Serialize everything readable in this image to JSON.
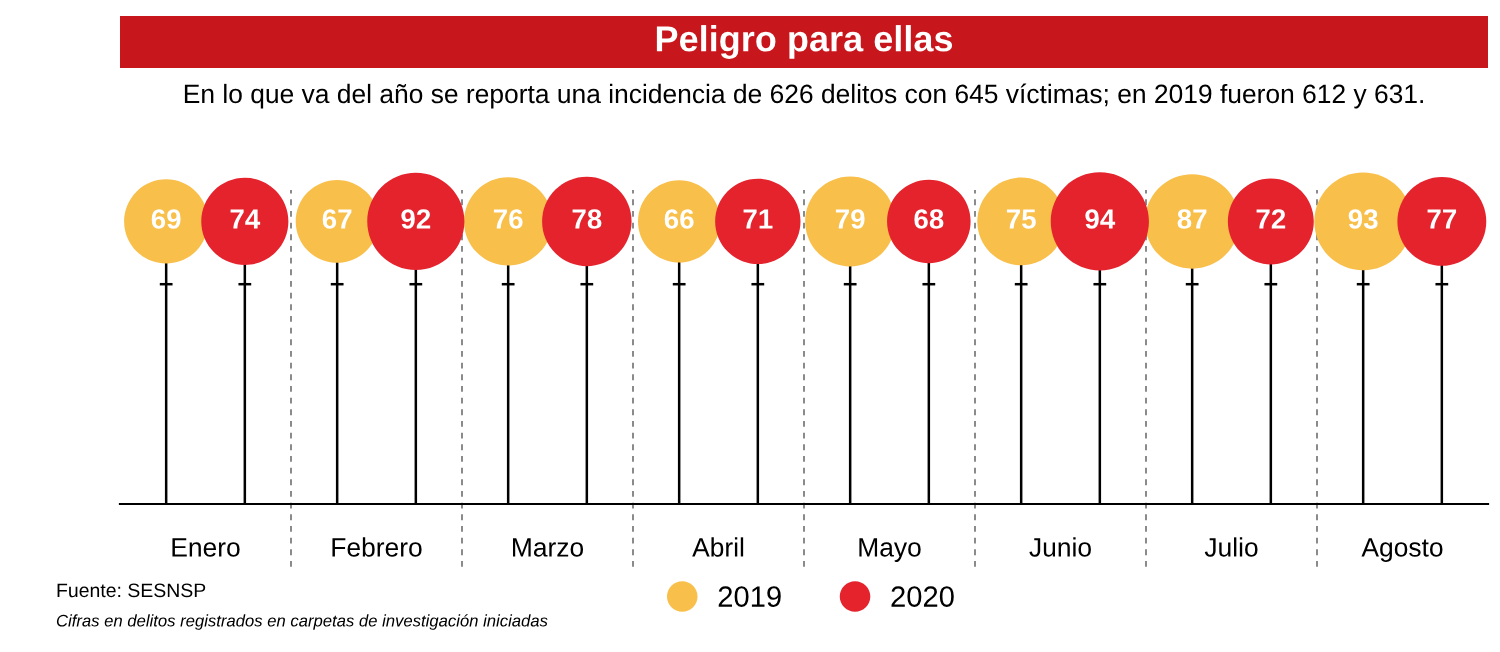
{
  "chart_data": {
    "type": "other",
    "title": "Peligro para ellas",
    "subtitle": "En lo que va del año se reporta una incidencia de 626 delitos con 645 víctimas; en 2019 fueron 612 y 631.",
    "categories": [
      "Enero",
      "Febrero",
      "Marzo",
      "Abril",
      "Mayo",
      "Junio",
      "Julio",
      "Agosto"
    ],
    "series": [
      {
        "name": "2019",
        "color": "#f9bf4b",
        "values": [
          69,
          67,
          76,
          66,
          79,
          75,
          87,
          93
        ]
      },
      {
        "name": "2020",
        "color": "#e4232d",
        "values": [
          74,
          92,
          78,
          71,
          68,
          94,
          72,
          77
        ]
      }
    ],
    "data_labels": true,
    "legend": "bottom",
    "annotations": [
      "Fuente: SESNSP",
      "Cifras en delitos registrados en carpetas de investigación iniciadas"
    ]
  }
}
